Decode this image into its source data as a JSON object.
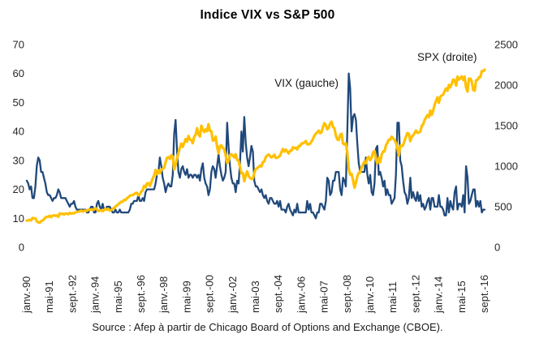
{
  "title": "Indice VIX vs S&P 500",
  "source": "Source : Afep à partir de Chicago Board of Options and Exchange (CBOE).",
  "annotations": {
    "vix_label": "VIX (gauche)",
    "spx_label": "SPX (droite)"
  },
  "colors": {
    "vix": "#20497B",
    "spx": "#FFC000",
    "text": "#262626"
  },
  "chart_data": {
    "type": "line",
    "title": "Indice VIX vs S&P 500",
    "frequency": "monthly",
    "x_start": "janv.-90",
    "x_end": "sept.-16",
    "grid": false,
    "legend_position": "inline-annotations",
    "x_tick_labels": [
      "janv.-90",
      "mai-91",
      "sept.-92",
      "janv.-94",
      "mai-95",
      "sept.-96",
      "janv.-98",
      "mai-99",
      "sept.-00",
      "janv.-02",
      "mai-03",
      "sept.-04",
      "janv.-06",
      "mai-07",
      "sept.-08",
      "janv.-10",
      "mai-11",
      "sept.-12",
      "janv.-14",
      "mai-15",
      "sept.-16"
    ],
    "x_tick_month_indices": [
      0,
      16,
      32,
      48,
      64,
      80,
      96,
      112,
      128,
      144,
      160,
      176,
      192,
      208,
      224,
      240,
      256,
      272,
      288,
      304,
      320
    ],
    "left_axis": {
      "label": "VIX (gauche)",
      "ticks": [
        0,
        10,
        20,
        30,
        40,
        50,
        60,
        70
      ],
      "range": [
        0,
        70
      ]
    },
    "right_axis": {
      "label": "SPX (droite)",
      "ticks": [
        0,
        500,
        1000,
        1500,
        2000,
        2500
      ],
      "range": [
        0,
        2500
      ]
    },
    "series": [
      {
        "name": "VIX (gauche)",
        "axis": "left",
        "color": "#20497B",
        "values": [
          23,
          22,
          20,
          21,
          17,
          17,
          21,
          28,
          31,
          30,
          26,
          26,
          24,
          22,
          19,
          18,
          18,
          17,
          16,
          17,
          17,
          18,
          20,
          19,
          17,
          17,
          17,
          17,
          16,
          15,
          14,
          15,
          15,
          16,
          14,
          13,
          13,
          13,
          13,
          13,
          13,
          13,
          12,
          12,
          13,
          14,
          14,
          12,
          12,
          15,
          16,
          14,
          13,
          15,
          13,
          13,
          14,
          14,
          14,
          13,
          12,
          12,
          13,
          12,
          12,
          13,
          12,
          12,
          12,
          12,
          12,
          12,
          13,
          15,
          15,
          16,
          16,
          16,
          18,
          16,
          16,
          17,
          16,
          19,
          20,
          20,
          20,
          20,
          20,
          20,
          22,
          25,
          26,
          31,
          28,
          24,
          22,
          19,
          21,
          22,
          21,
          21,
          25,
          39,
          44,
          33,
          26,
          24,
          27,
          28,
          26,
          25,
          27,
          24,
          25,
          25,
          24,
          25,
          25,
          24,
          25,
          23,
          27,
          29,
          24,
          22,
          21,
          18,
          20,
          26,
          28,
          27,
          24,
          28,
          32,
          28,
          25,
          23,
          24,
          26,
          43,
          35,
          28,
          24,
          22,
          22,
          19,
          23,
          22,
          29,
          40,
          33,
          45,
          36,
          31,
          28,
          31,
          35,
          33,
          23,
          21,
          21,
          20,
          19,
          20,
          18,
          17,
          18,
          16,
          15,
          17,
          17,
          16,
          15,
          15,
          16,
          14,
          16,
          13,
          13,
          13,
          12,
          14,
          15,
          13,
          12,
          11,
          13,
          12,
          15,
          12,
          12,
          12,
          12,
          12,
          12,
          16,
          13,
          15,
          12,
          12,
          11,
          10,
          12,
          12,
          15,
          15,
          14,
          13,
          16,
          24,
          23,
          18,
          19,
          23,
          23,
          26,
          26,
          26,
          20,
          18,
          24,
          23,
          21,
          40,
          60,
          55,
          40,
          45,
          46,
          44,
          36,
          29,
          26,
          26,
          26,
          26,
          31,
          25,
          22,
          25,
          19,
          18,
          22,
          34,
          35,
          25,
          26,
          24,
          21,
          23,
          18,
          20,
          18,
          18,
          15,
          16,
          17,
          25,
          43,
          43,
          30,
          28,
          23,
          19,
          18,
          15,
          17,
          24,
          17,
          19,
          17,
          16,
          19,
          16,
          18,
          14,
          15,
          13,
          14,
          16,
          17,
          13,
          17,
          17,
          14,
          14,
          14,
          18,
          14,
          14,
          13,
          11,
          11,
          17,
          12,
          16,
          14,
          13,
          19,
          21,
          13,
          15,
          15,
          14,
          18,
          12,
          28,
          24,
          15,
          16,
          18,
          20,
          20,
          14,
          16,
          14,
          16,
          12,
          13,
          13
        ]
      },
      {
        "name": "SPX (droite)",
        "axis": "right",
        "color": "#FFC000",
        "values": [
          329,
          331,
          339,
          331,
          361,
          358,
          356,
          323,
          306,
          304,
          322,
          330,
          344,
          367,
          375,
          375,
          390,
          371,
          388,
          395,
          388,
          392,
          375,
          417,
          409,
          413,
          404,
          415,
          415,
          408,
          424,
          414,
          418,
          419,
          431,
          436,
          439,
          443,
          452,
          440,
          450,
          451,
          448,
          464,
          459,
          468,
          462,
          466,
          482,
          467,
          446,
          451,
          457,
          444,
          458,
          475,
          463,
          472,
          454,
          459,
          470,
          487,
          501,
          515,
          533,
          545,
          562,
          562,
          584,
          582,
          605,
          616,
          636,
          640,
          646,
          654,
          669,
          671,
          640,
          652,
          687,
          705,
          757,
          741,
          786,
          791,
          757,
          801,
          848,
          885,
          954,
          899,
          947,
          915,
          955,
          970,
          980,
          1049,
          1102,
          1112,
          1091,
          1134,
          1121,
          957,
          1017,
          1099,
          1164,
          1229,
          1280,
          1238,
          1286,
          1335,
          1302,
          1373,
          1329,
          1320,
          1283,
          1363,
          1389,
          1469,
          1394,
          1366,
          1499,
          1452,
          1421,
          1455,
          1431,
          1518,
          1437,
          1429,
          1315,
          1320,
          1366,
          1240,
          1160,
          1249,
          1256,
          1224,
          1211,
          1134,
          1041,
          1060,
          1139,
          1148,
          1130,
          1107,
          1147,
          1077,
          1067,
          990,
          912,
          916,
          815,
          886,
          936,
          880,
          856,
          841,
          848,
          917,
          964,
          975,
          990,
          1008,
          996,
          1051,
          1058,
          1112,
          1131,
          1145,
          1126,
          1107,
          1121,
          1141,
          1102,
          1104,
          1115,
          1130,
          1174,
          1212,
          1181,
          1204,
          1181,
          1157,
          1192,
          1191,
          1234,
          1220,
          1229,
          1207,
          1249,
          1248,
          1280,
          1281,
          1295,
          1311,
          1270,
          1270,
          1277,
          1304,
          1336,
          1378,
          1401,
          1418,
          1438,
          1407,
          1421,
          1482,
          1531,
          1503,
          1455,
          1474,
          1527,
          1549,
          1481,
          1468,
          1379,
          1331,
          1323,
          1386,
          1400,
          1280,
          1267,
          1283,
          1165,
          969,
          896,
          903,
          826,
          735,
          798,
          873,
          919,
          919,
          987,
          1021,
          1057,
          1036,
          1096,
          1115,
          1074,
          1104,
          1169,
          1187,
          1089,
          1031,
          1102,
          1049,
          1141,
          1183,
          1181,
          1258,
          1286,
          1327,
          1326,
          1364,
          1345,
          1321,
          1292,
          1219,
          1131,
          1253,
          1247,
          1258,
          1312,
          1366,
          1408,
          1398,
          1310,
          1362,
          1379,
          1407,
          1441,
          1412,
          1416,
          1426,
          1498,
          1515,
          1569,
          1598,
          1631,
          1606,
          1686,
          1633,
          1682,
          1757,
          1806,
          1848,
          1783,
          1859,
          1872,
          1884,
          1924,
          1960,
          1931,
          2003,
          1972,
          2018,
          2068,
          2059,
          1995,
          2105,
          2068,
          2086,
          2107,
          2063,
          2104,
          1972,
          1920,
          2079,
          2080,
          2044,
          1940,
          1932,
          2060,
          2065,
          2097,
          2099,
          2174,
          2171,
          2190
        ]
      }
    ]
  }
}
